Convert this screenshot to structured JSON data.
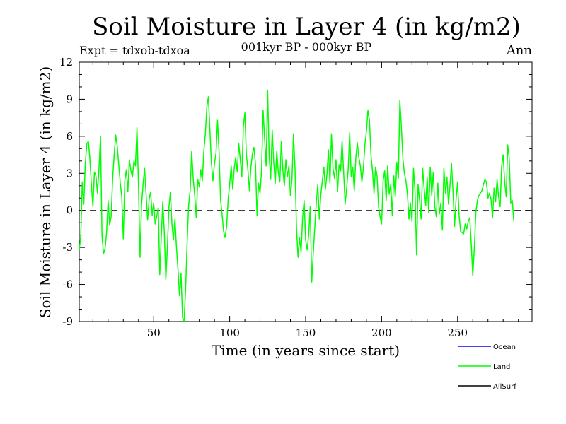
{
  "chart_data": {
    "type": "line",
    "title": "Soil Moisture in Layer 4 (in kg/m2)",
    "subtitle": "001kyr BP - 000kyr BP",
    "left_note": "Expt = tdxob-tdxoa",
    "right_note": "Ann",
    "xlabel": "Time (in years since start)",
    "ylabel": "Soil Moisture in Layer 4 (in kg/m2)",
    "xlim": [
      1,
      299
    ],
    "ylim": [
      -9,
      12
    ],
    "xticks_labeled": [
      50,
      100,
      150,
      200,
      250
    ],
    "yticks_labeled": [
      -9,
      -6,
      -3,
      0,
      3,
      6,
      9,
      12
    ],
    "zero_line": true,
    "grid": false,
    "legend_position": "bottom-right",
    "series": [
      {
        "name": "Ocean",
        "color": "#0000ff",
        "values": []
      },
      {
        "name": "Land",
        "color": "#00ff00",
        "x_start": 1,
        "values": [
          -3.2,
          -2.1,
          2.3,
          0.5,
          3.8,
          5.4,
          5.6,
          4.2,
          2.1,
          0.3,
          3.1,
          2.8,
          1.4,
          3.4,
          6.0,
          -2.1,
          -3.5,
          -3.1,
          -1.8,
          0.8,
          -1.2,
          -0.5,
          2.6,
          4.5,
          6.1,
          5.2,
          3.7,
          2.2,
          1.1,
          -2.3,
          2.4,
          3.3,
          1.5,
          4.1,
          3.2,
          2.7,
          4.0,
          3.6,
          6.7,
          2.0,
          -3.8,
          0.4,
          2.1,
          3.4,
          1.3,
          -0.8,
          0.9,
          1.5,
          -0.4,
          0.6,
          -1.1,
          -0.5,
          0.2,
          -5.2,
          -2.1,
          0.7,
          -1.8,
          -5.6,
          -3.1,
          0.2,
          1.5,
          -1.1,
          -2.4,
          -0.7,
          -3.0,
          -4.8,
          -6.9,
          -5.1,
          -8.7,
          -9.0,
          -6.4,
          -2.7,
          0.4,
          1.6,
          4.8,
          2.6,
          1.2,
          -0.6,
          2.5,
          1.9,
          3.3,
          2.4,
          4.8,
          6.2,
          8.4,
          9.2,
          6.5,
          3.8,
          2.4,
          3.8,
          4.6,
          7.3,
          4.8,
          0.9,
          -0.3,
          -1.7,
          -2.2,
          -1.3,
          0.9,
          2.1,
          3.6,
          1.7,
          3.4,
          4.3,
          3.1,
          5.4,
          4.1,
          2.7,
          6.8,
          7.9,
          4.5,
          3.3,
          1.6,
          3.5,
          4.6,
          5.1,
          3.7,
          -0.4,
          2.2,
          1.4,
          3.3,
          8.1,
          5.8,
          3.6,
          9.7,
          4.4,
          2.5,
          6.5,
          3.9,
          2.2,
          4.8,
          3.1,
          2.3,
          5.6,
          3.3,
          2.0,
          4.1,
          2.7,
          3.6,
          1.2,
          2.5,
          6.2,
          3.4,
          -1.5,
          -3.8,
          -2.2,
          -3.4,
          -0.6,
          0.8,
          -2.4,
          -3.2,
          -2.0,
          0.3,
          -5.8,
          -3.5,
          -1.4,
          0.6,
          2.1,
          -0.7,
          1.3,
          2.4,
          3.5,
          1.7,
          2.9,
          4.9,
          2.2,
          6.2,
          3.4,
          2.6,
          4.1,
          1.5,
          3.7,
          3.2,
          5.6,
          3.1,
          0.5,
          1.8,
          3.3,
          6.3,
          2.7,
          3.5,
          1.6,
          4.2,
          5.5,
          4.3,
          3.6,
          2.3,
          3.4,
          5.3,
          6.4,
          8.1,
          7.3,
          4.5,
          3.2,
          1.4,
          3.5,
          2.8,
          0.3,
          -0.5,
          -1.1,
          2.4,
          3.2,
          0.8,
          3.6,
          1.3,
          2.1,
          -0.4,
          2.8,
          1.1,
          3.9,
          2.6,
          8.9,
          6.8,
          4.2,
          3.0,
          2.4,
          1.3,
          -0.7,
          0.6,
          -0.9,
          3.4,
          1.5,
          -3.6,
          2.1,
          0.8,
          -0.7,
          3.4,
          1.8,
          0.4,
          2.7,
          -0.2,
          3.5,
          1.2,
          3.1,
          0.3,
          -0.5,
          2.2,
          -0.3,
          0.6,
          -1.6,
          3.4,
          1.4,
          2.7,
          0.5,
          2.0,
          3.8,
          1.5,
          -1.3,
          0.9,
          2.3,
          -0.4,
          -1.7,
          -1.8,
          -1.9,
          -1.1,
          -1.5,
          -0.9,
          -0.6,
          -2.7,
          -5.3,
          -3.1,
          -0.2,
          0.8,
          1.2,
          1.4,
          1.6,
          2.1,
          2.5,
          2.3,
          1.0,
          1.4,
          0.9,
          -0.6,
          1.8,
          0.7,
          2.5,
          1.1,
          0.3,
          3.6,
          4.5,
          2.3,
          1.1,
          5.3,
          4.2,
          0.6,
          0.8,
          -0.9
        ]
      },
      {
        "name": "AllSurf",
        "color": "#000000",
        "values": []
      }
    ]
  }
}
